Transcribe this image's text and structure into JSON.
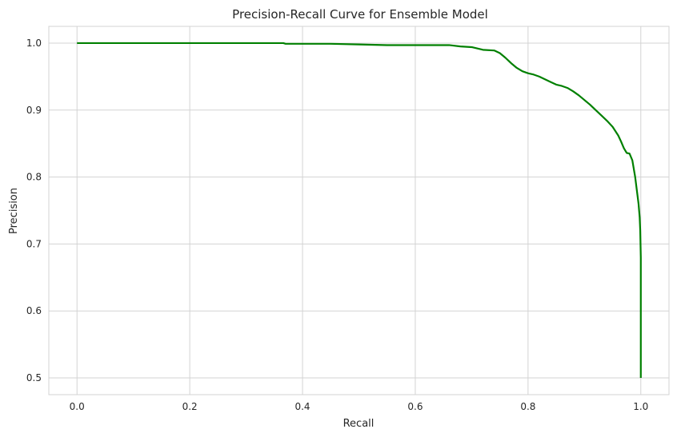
{
  "chart_data": {
    "type": "line",
    "title": "Precision-Recall Curve for Ensemble Model",
    "xlabel": "Recall",
    "ylabel": "Precision",
    "xlim": [
      -0.05,
      1.05
    ],
    "ylim": [
      0.475,
      1.025
    ],
    "x_ticks": [
      0.0,
      0.2,
      0.4,
      0.6,
      0.8,
      1.0
    ],
    "x_tick_labels": [
      "0.0",
      "0.2",
      "0.4",
      "0.6",
      "0.8",
      "1.0"
    ],
    "y_ticks": [
      0.5,
      0.6,
      0.7,
      0.8,
      0.9,
      1.0
    ],
    "y_tick_labels": [
      "0.5",
      "0.6",
      "0.7",
      "0.8",
      "0.9",
      "1.0"
    ],
    "grid": true,
    "legend": "none",
    "series": [
      {
        "color": "#008000",
        "x": [
          0.0,
          0.05,
          0.1,
          0.2,
          0.3,
          0.366,
          0.37,
          0.4,
          0.45,
          0.5,
          0.55,
          0.6,
          0.66,
          0.68,
          0.7,
          0.72,
          0.74,
          0.75,
          0.76,
          0.77,
          0.78,
          0.79,
          0.8,
          0.81,
          0.82,
          0.83,
          0.84,
          0.85,
          0.86,
          0.87,
          0.88,
          0.89,
          0.9,
          0.91,
          0.92,
          0.93,
          0.94,
          0.95,
          0.96,
          0.965,
          0.97,
          0.975,
          0.98,
          0.985,
          0.99,
          0.993,
          0.996,
          0.998,
          0.999,
          1.0,
          1.0,
          1.0
        ],
        "y": [
          1.0,
          1.0,
          1.0,
          1.0,
          1.0,
          1.0,
          0.999,
          0.999,
          0.999,
          0.998,
          0.997,
          0.997,
          0.997,
          0.995,
          0.994,
          0.99,
          0.989,
          0.985,
          0.978,
          0.97,
          0.963,
          0.958,
          0.955,
          0.953,
          0.95,
          0.946,
          0.942,
          0.938,
          0.936,
          0.933,
          0.928,
          0.922,
          0.915,
          0.908,
          0.9,
          0.892,
          0.884,
          0.875,
          0.862,
          0.853,
          0.843,
          0.836,
          0.835,
          0.825,
          0.8,
          0.78,
          0.76,
          0.74,
          0.72,
          0.68,
          0.6,
          0.5
        ]
      }
    ]
  }
}
